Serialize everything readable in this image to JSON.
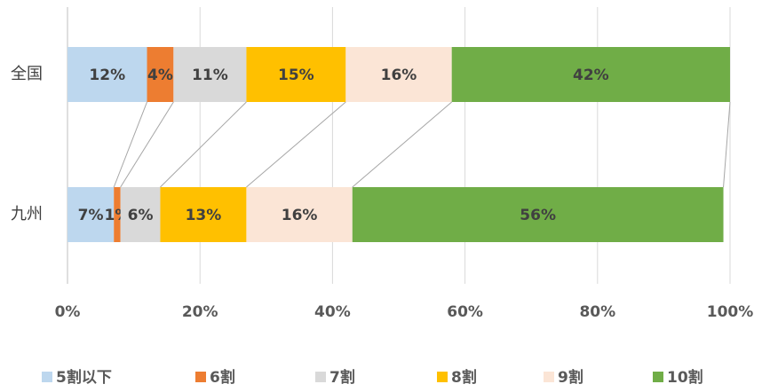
{
  "chart_data": {
    "type": "stacked_bar_horizontal",
    "categories": [
      "全国",
      "九州"
    ],
    "series": [
      {
        "name": "5割以下",
        "color": "#bdd7ee",
        "values": [
          12,
          7
        ],
        "value_labels": [
          "12%",
          "7%"
        ]
      },
      {
        "name": "6割",
        "color": "#ed7d31",
        "values": [
          4,
          1
        ],
        "value_labels": [
          "4%",
          "1%"
        ]
      },
      {
        "name": "7割",
        "color": "#d9d9d9",
        "values": [
          11,
          6
        ],
        "value_labels": [
          "11%",
          "6%"
        ]
      },
      {
        "name": "8割",
        "color": "#ffc000",
        "values": [
          15,
          13
        ],
        "value_labels": [
          "15%",
          "13%"
        ]
      },
      {
        "name": "9割",
        "color": "#fbe5d6",
        "values": [
          16,
          16
        ],
        "value_labels": [
          "16%",
          "16%"
        ]
      },
      {
        "name": "10割",
        "color": "#70ad47",
        "values": [
          42,
          56
        ],
        "value_labels": [
          "42%",
          "56%"
        ]
      }
    ],
    "xlim": [
      0,
      100
    ],
    "xticks": [
      {
        "value": 0,
        "label": "0%"
      },
      {
        "value": 20,
        "label": "20%"
      },
      {
        "value": 40,
        "label": "40%"
      },
      {
        "value": 60,
        "label": "60%"
      },
      {
        "value": 80,
        "label": "80%"
      },
      {
        "value": 100,
        "label": "100%"
      }
    ],
    "grid": true,
    "legend": "bottom"
  }
}
